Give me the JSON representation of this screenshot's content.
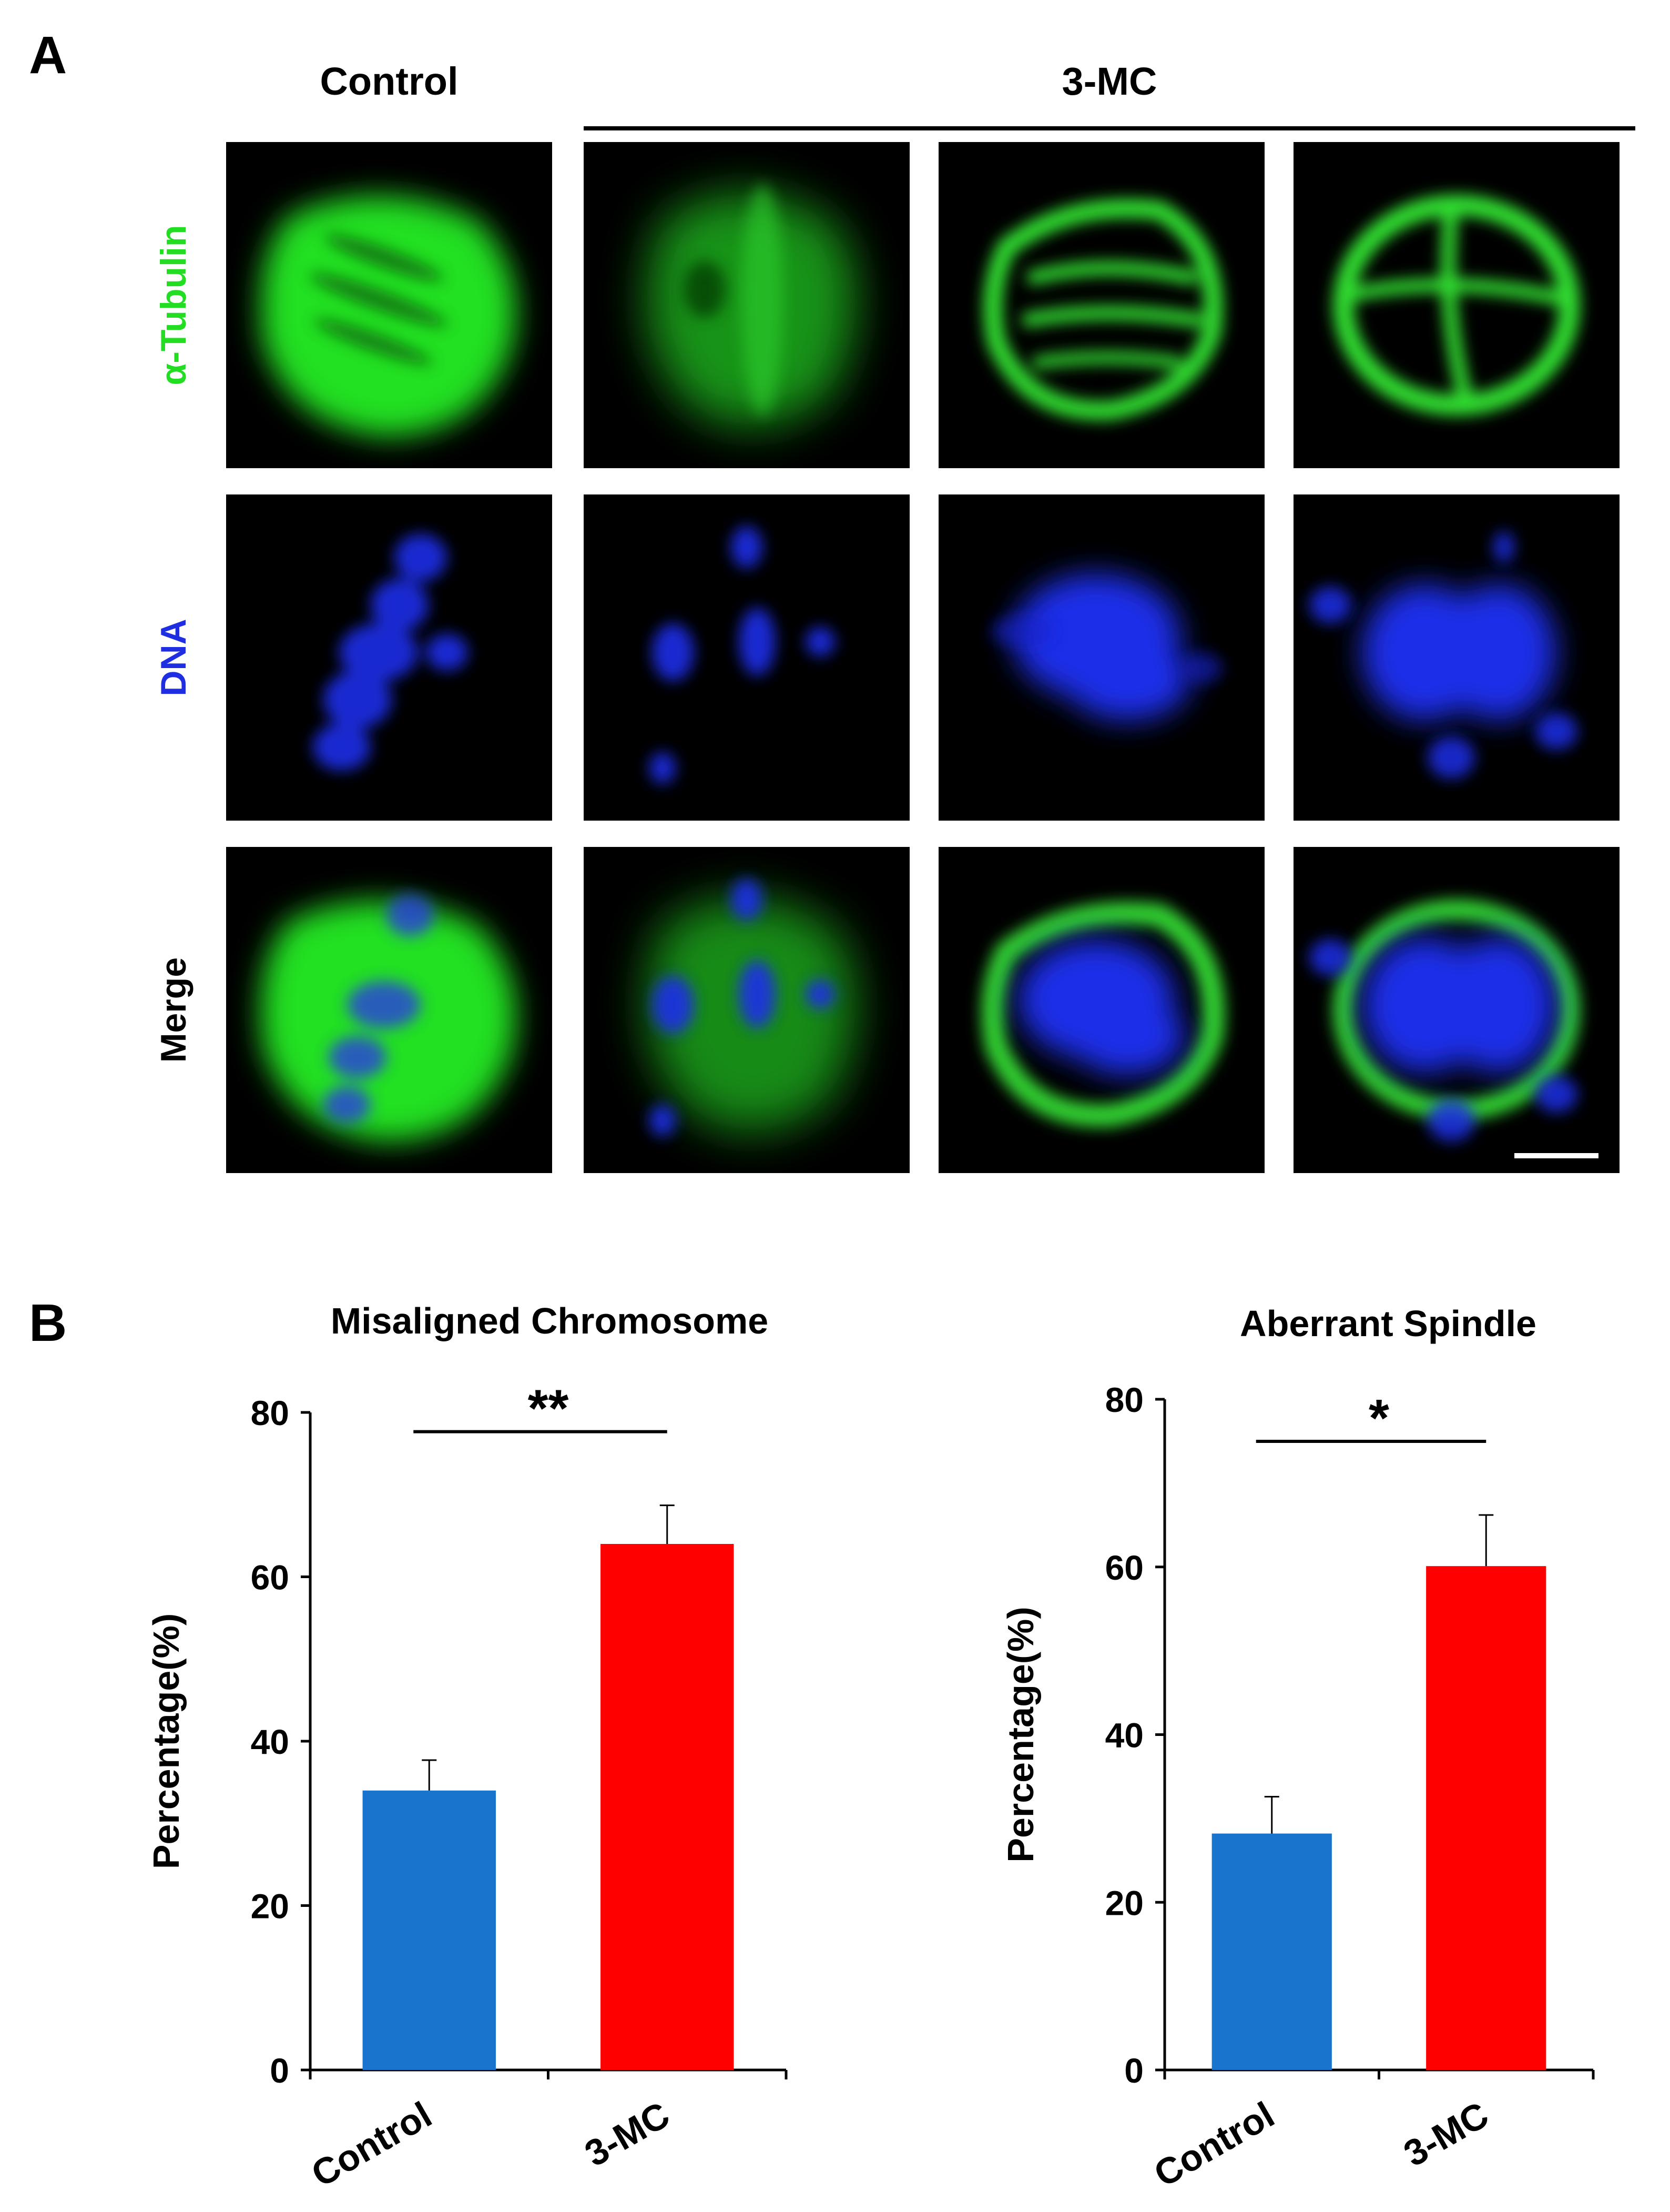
{
  "panel_a": {
    "letter": "A",
    "column_labels": {
      "control": "Control",
      "treatment": "3-MC"
    },
    "row_labels": {
      "tubulin": "α-Tubulin",
      "dna": "DNA",
      "merge": "Merge"
    },
    "colors": {
      "tubulin": "#22dd22",
      "dna": "#1e2ee0"
    }
  },
  "panel_b": {
    "letter": "B"
  },
  "chart_data": [
    {
      "type": "bar",
      "title": "Misaligned Chromosome",
      "ylabel": "Percentage(%)",
      "xlabel": "",
      "categories": [
        "Control",
        "3-MC"
      ],
      "values": [
        34,
        64
      ],
      "errors": [
        3.7,
        4.7
      ],
      "colors": [
        "#1874cd",
        "#ff0000"
      ],
      "ylim": [
        0,
        80
      ],
      "yticks": [
        0,
        20,
        40,
        60,
        80
      ],
      "significance": "**",
      "grid": false
    },
    {
      "type": "bar",
      "title": "Aberrant Spindle",
      "ylabel": "Percentage(%)",
      "xlabel": "",
      "categories": [
        "Control",
        "3-MC"
      ],
      "values": [
        28.2,
        60.1
      ],
      "errors": [
        4.4,
        6.1
      ],
      "colors": [
        "#1874cd",
        "#ff0000"
      ],
      "ylim": [
        0,
        80
      ],
      "yticks": [
        0,
        20,
        40,
        60,
        80
      ],
      "significance": "*",
      "grid": false
    }
  ]
}
